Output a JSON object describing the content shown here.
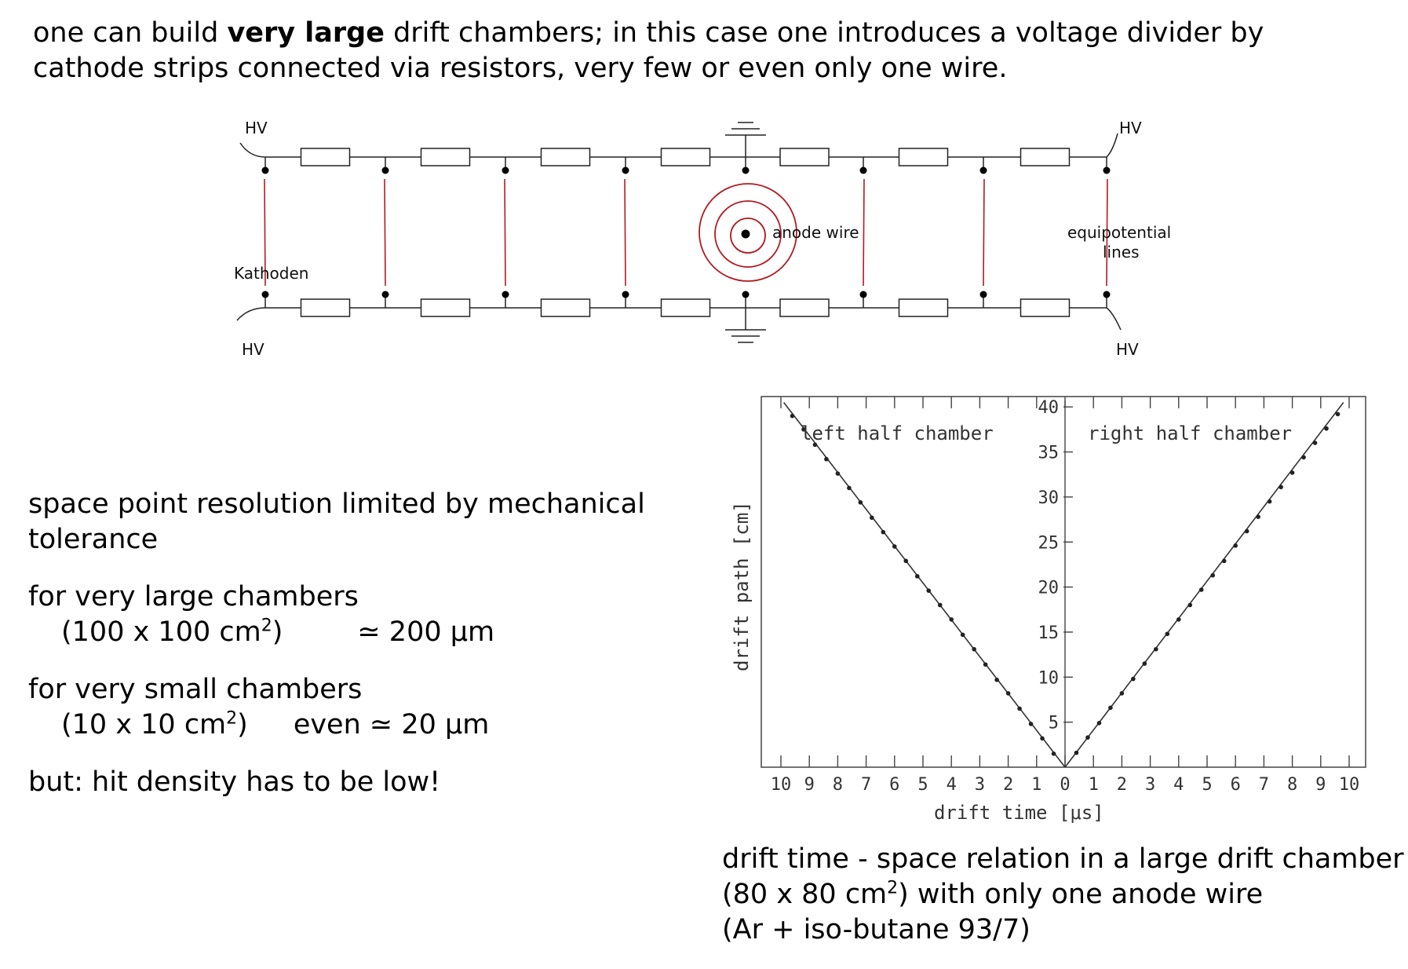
{
  "intro": {
    "pre": "one can build ",
    "bold": "very large",
    "post": " drift chambers; in this case one introduces a voltage divider by cathode strips connected via resistors, very few or even only one wire."
  },
  "diagram": {
    "hv_labels": [
      "HV",
      "HV",
      "HV",
      "HV"
    ],
    "kathoden_label": "Kathoden",
    "anode_label": "anode wire",
    "equi_label_1": "equipotential",
    "equi_label_2": "lines",
    "colors": {
      "wire": "#222222",
      "equipotential": "#b01c22"
    }
  },
  "left": {
    "res_line1": "space point resolution limited by mechanical",
    "res_line2": "tolerance",
    "large_line1": "for very large chambers",
    "large_dims": "(100 x 100 cm",
    "large_sup": "2",
    "large_close": ")",
    "large_value": "≃ 200 μm",
    "small_line1": "for very small chambers",
    "small_dims": "(10 x 10 cm",
    "small_sup": "2",
    "small_close": ")",
    "small_value": "even ≃ 20 μm",
    "but_line": "but:  hit density has to be low!"
  },
  "chart_data": {
    "type": "scatter",
    "xlabel": "drift time [μs]",
    "ylabel": "drift path [cm]",
    "x_ticks": [
      "10",
      "9",
      "8",
      "7",
      "6",
      "5",
      "4",
      "3",
      "2",
      "1",
      "0",
      "1",
      "2",
      "3",
      "4",
      "5",
      "6",
      "7",
      "8",
      "9",
      "10"
    ],
    "y_ticks": [
      "5",
      "10",
      "15",
      "20",
      "25",
      "30",
      "35",
      "40"
    ],
    "xlim": [
      -10,
      10
    ],
    "ylim": [
      0,
      40
    ],
    "annotations": [
      "left half chamber",
      "right half chamber"
    ],
    "series": [
      {
        "name": "left half chamber",
        "x": [
          -0.4,
          -0.8,
          -1.2,
          -1.6,
          -2.0,
          -2.4,
          -2.8,
          -3.2,
          -3.6,
          -4.0,
          -4.4,
          -4.8,
          -5.2,
          -5.6,
          -6.0,
          -6.4,
          -6.8,
          -7.2,
          -7.6,
          -8.0,
          -8.4,
          -8.8,
          -9.2,
          -9.6
        ],
        "y": [
          1.5,
          3.2,
          4.8,
          6.5,
          8.2,
          9.7,
          11.4,
          13.1,
          14.7,
          16.4,
          18.0,
          19.6,
          21.2,
          22.9,
          24.5,
          26.1,
          27.7,
          29.4,
          31.0,
          32.6,
          34.2,
          35.8,
          37.5,
          39.0
        ]
      },
      {
        "name": "right half chamber",
        "x": [
          0.4,
          0.8,
          1.2,
          1.6,
          2.0,
          2.4,
          2.8,
          3.2,
          3.6,
          4.0,
          4.4,
          4.8,
          5.2,
          5.6,
          6.0,
          6.4,
          6.8,
          7.2,
          7.6,
          8.0,
          8.4,
          8.8,
          9.2,
          9.6
        ],
        "y": [
          1.6,
          3.3,
          4.9,
          6.6,
          8.2,
          9.8,
          11.5,
          13.1,
          14.8,
          16.4,
          18.0,
          19.7,
          21.3,
          22.9,
          24.6,
          26.2,
          27.8,
          29.5,
          31.1,
          32.7,
          34.4,
          36.0,
          37.6,
          39.2
        ]
      }
    ]
  },
  "caption": {
    "line1": "drift time - space relation in a large drift chamber",
    "line2_pre": "(80 x 80 cm",
    "line2_sup": "2",
    "line2_post": ") with only one anode wire",
    "line3": "(Ar + iso-butane 93/7)"
  }
}
